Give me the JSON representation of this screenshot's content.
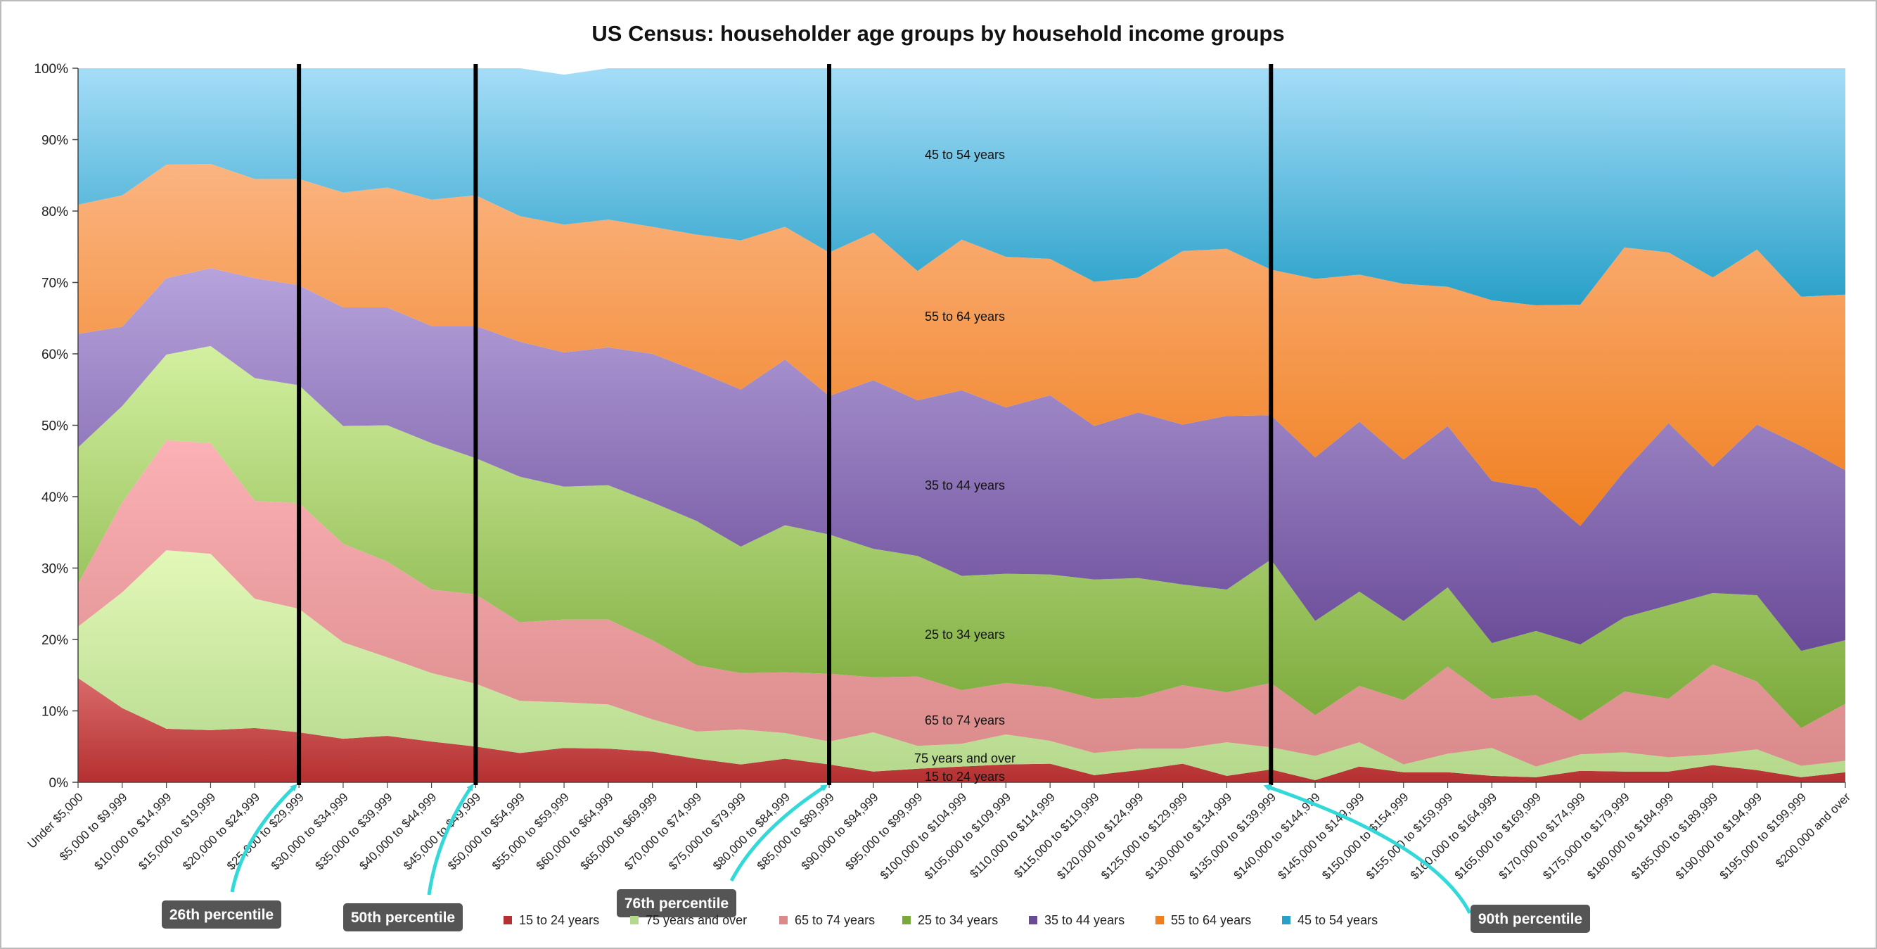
{
  "chart_data": {
    "type": "area",
    "stacked": "percent",
    "title": "US Census: householder age groups by household income groups",
    "xlabel": "",
    "ylabel": "",
    "ylim": [
      0,
      100
    ],
    "yticks": [
      "0%",
      "10%",
      "20%",
      "30%",
      "40%",
      "50%",
      "60%",
      "70%",
      "80%",
      "90%",
      "100%"
    ],
    "grid": false,
    "legend_position": "bottom",
    "categories": [
      "Under $5,000",
      "$5,000 to $9,999",
      "$10,000 to $14,999",
      "$15,000 to $19,999",
      "$20,000 to $24,999",
      "$25,000 to $29,999",
      "$30,000 to $34,999",
      "$35,000 to $39,999",
      "$40,000 to $44,999",
      "$45,000 to $49,999",
      "$50,000 to $54,999",
      "$55,000 to $59,999",
      "$60,000 to $64,999",
      "$65,000 to $69,999",
      "$70,000 to $74,999",
      "$75,000 to $79,999",
      "$80,000 to $84,999",
      "$85,000 to $89,999",
      "$90,000 to $94,999",
      "$95,000 to $99,999",
      "$100,000 to $104,999",
      "$105,000 to $109,999",
      "$110,000 to $114,999",
      "$115,000 to $119,999",
      "$120,000 to $124,999",
      "$125,000 to $129,999",
      "$130,000 to $134,999",
      "$135,000 to $139,999",
      "$140,000 to $144,999",
      "$145,000 to $149,999",
      "$150,000 to $154,999",
      "$155,000 to $159,999",
      "$160,000 to $164,999",
      "$165,000 to $169,999",
      "$170,000 to $174,999",
      "$175,000 to $179,999",
      "$180,000 to $184,999",
      "$185,000 to $189,999",
      "$190,000 to $194,999",
      "$195,000 to $199,999",
      "$200,000 and over"
    ],
    "series": [
      {
        "name": "15 to 24 years",
        "color_top": "#d96a6a",
        "color_bottom": "#b53030",
        "values": [
          14.6,
          10.4,
          7.5,
          7.3,
          7.6,
          7.0,
          6.1,
          6.5,
          5.7,
          5.0,
          4.1,
          4.8,
          4.7,
          4.3,
          3.3,
          2.5,
          3.3,
          2.5,
          1.5,
          1.9,
          2.2,
          2.5,
          2.6,
          1.0,
          1.7,
          2.6,
          0.9,
          1.8,
          0.3,
          2.2,
          1.4,
          1.4,
          0.9,
          0.7,
          1.6,
          1.5,
          1.5,
          2.4,
          1.7,
          0.7,
          1.4
        ]
      },
      {
        "name": "75 years and over",
        "color_top": "#e3f8b8",
        "color_bottom": "#b4d88c",
        "values": [
          7.2,
          16.2,
          25.0,
          24.7,
          18.1,
          17.3,
          13.5,
          11.0,
          9.6,
          8.8,
          7.3,
          6.4,
          6.2,
          4.5,
          3.8,
          4.9,
          3.6,
          3.2,
          5.5,
          3.2,
          3.2,
          4.2,
          3.2,
          3.1,
          3.0,
          2.1,
          4.7,
          3.1,
          3.4,
          3.4,
          1.1,
          2.6,
          3.9,
          1.5,
          2.3,
          2.7,
          2.0,
          1.5,
          2.9,
          1.6,
          1.6
        ]
      },
      {
        "name": "65 to 74 years",
        "color_top": "#fbb1b5",
        "color_bottom": "#da8a8a",
        "values": [
          6.0,
          12.6,
          15.4,
          15.5,
          13.7,
          14.8,
          13.8,
          13.4,
          11.7,
          12.5,
          11.0,
          11.6,
          11.9,
          11.1,
          9.3,
          7.9,
          8.5,
          9.5,
          7.7,
          9.7,
          7.5,
          7.2,
          7.5,
          7.6,
          7.2,
          8.9,
          7.0,
          9.0,
          5.7,
          7.9,
          9.0,
          12.2,
          6.9,
          10.0,
          4.7,
          8.5,
          8.2,
          12.6,
          9.5,
          5.3,
          8.0
        ]
      },
      {
        "name": "25 to 34 years",
        "color_top": "#d3f0a0",
        "color_bottom": "#7aa93a",
        "values": [
          19.1,
          13.5,
          12.0,
          13.6,
          17.2,
          16.5,
          16.5,
          19.1,
          20.5,
          19.1,
          20.4,
          18.6,
          18.8,
          19.3,
          20.2,
          17.7,
          20.6,
          19.5,
          18.0,
          16.9,
          16.0,
          15.3,
          15.8,
          16.7,
          16.7,
          14.1,
          14.4,
          17.3,
          13.2,
          13.2,
          11.1,
          11.1,
          7.8,
          9.0,
          10.7,
          10.4,
          13.1,
          10.0,
          12.1,
          10.8,
          8.9
        ]
      },
      {
        "name": "35 to 44 years",
        "color_top": "#b6a3dc",
        "color_bottom": "#6a4b98",
        "values": [
          15.9,
          11.1,
          10.7,
          10.9,
          14.0,
          14.0,
          16.6,
          16.5,
          16.4,
          18.5,
          18.9,
          18.8,
          19.3,
          20.8,
          21.0,
          22.0,
          23.2,
          19.4,
          23.6,
          21.8,
          26.0,
          23.3,
          25.1,
          21.5,
          23.2,
          22.4,
          24.3,
          20.2,
          22.9,
          23.8,
          22.6,
          22.6,
          22.7,
          20.0,
          16.6,
          20.5,
          25.5,
          17.7,
          23.9,
          28.7,
          23.8
        ]
      },
      {
        "name": "55 to 64 years",
        "color_top": "#fbb480",
        "color_bottom": "#f07f20",
        "values": [
          18.1,
          18.4,
          15.9,
          14.6,
          13.9,
          14.9,
          16.1,
          16.8,
          17.7,
          18.3,
          17.6,
          17.9,
          17.9,
          17.8,
          19.1,
          20.9,
          18.6,
          20.1,
          20.7,
          18.1,
          21.1,
          21.1,
          19.1,
          20.2,
          18.9,
          24.3,
          23.4,
          20.4,
          25.0,
          20.6,
          24.6,
          19.5,
          25.3,
          25.6,
          31.0,
          31.3,
          23.9,
          26.5,
          24.5,
          20.9,
          24.6
        ]
      },
      {
        "name": "45 to 54 years",
        "color_top": "#a5ddf8",
        "color_bottom": "#28a0c8",
        "values": [
          19.1,
          17.8,
          13.5,
          13.4,
          15.5,
          15.5,
          17.4,
          16.7,
          18.4,
          17.8,
          20.7,
          21.0,
          21.2,
          22.2,
          23.3,
          24.1,
          22.2,
          25.8,
          23.0,
          28.4,
          24.0,
          26.4,
          26.7,
          29.9,
          29.3,
          25.6,
          25.3,
          28.2,
          29.5,
          28.9,
          30.2,
          30.6,
          32.5,
          33.2,
          33.1,
          25.1,
          25.8,
          29.3,
          25.4,
          32.0,
          31.7
        ]
      }
    ],
    "inline_labels": [
      "45 to 54 years",
      "55 to 64 years",
      "35 to 44 years",
      "25 to 34 years",
      "65 to 74 years",
      "75 years and over",
      "15 to 24 years"
    ],
    "percentile_markers": [
      {
        "label": "26th percentile",
        "category_index": 5
      },
      {
        "label": "50th percentile",
        "category_index": 9
      },
      {
        "label": "76th percentile",
        "category_index": 17
      },
      {
        "label": "90th percentile",
        "category_index": 27
      }
    ]
  },
  "annotation_color": "#33d8d8",
  "callout_color": "#555555"
}
